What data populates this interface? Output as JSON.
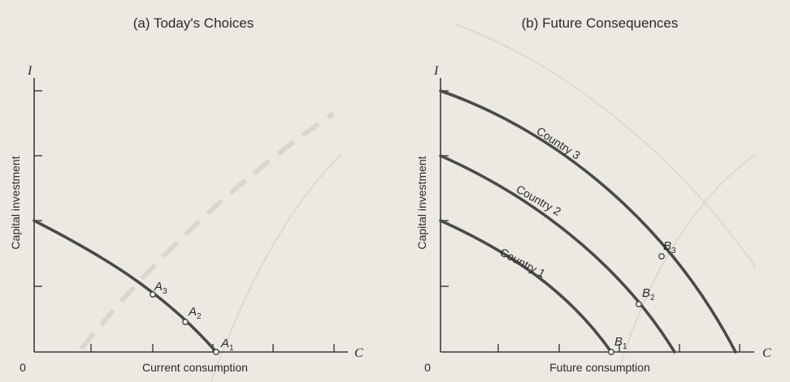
{
  "panel_a": {
    "title": "(a) Today's Choices",
    "y_axis_var": "I",
    "x_axis_var": "C",
    "origin_label": "0",
    "y_label": "Capital investment",
    "x_label": "Current consumption",
    "points": [
      {
        "letter": "A",
        "sub": "3"
      },
      {
        "letter": "A",
        "sub": "2"
      },
      {
        "letter": "A",
        "sub": "1"
      }
    ]
  },
  "panel_b": {
    "title": "(b) Future Consequences",
    "y_axis_var": "I",
    "x_axis_var": "C",
    "origin_label": "0",
    "y_label": "Capital investment",
    "x_label": "Future consumption",
    "curves": [
      {
        "label": "Country 1"
      },
      {
        "label": "Country 2"
      },
      {
        "label": "Country 3"
      }
    ],
    "points": [
      {
        "letter": "B",
        "sub": "1"
      },
      {
        "letter": "B",
        "sub": "2"
      },
      {
        "letter": "B",
        "sub": "3"
      }
    ]
  },
  "colors": {
    "background": "#ece9e3",
    "ink": "#2a2a2a",
    "curve": "#4a4a4a"
  }
}
